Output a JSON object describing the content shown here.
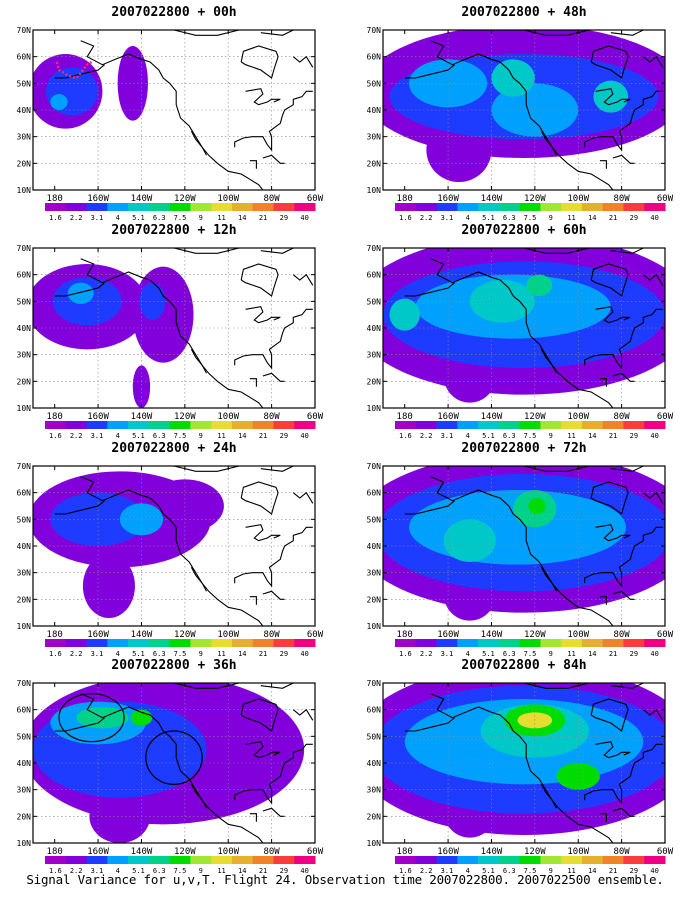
{
  "caption": "Signal Variance for u,v,T. Flight 24. Observation time 2007022800. 2007022500 ensemble.",
  "chart_data": [
    {
      "type": "heatmap",
      "title": "2007022800 + 00h",
      "lat_ticks": [
        "10N",
        "20N",
        "30N",
        "40N",
        "50N",
        "60N",
        "70N"
      ],
      "lon_ticks": [
        "180",
        "160W",
        "140W",
        "120W",
        "100W",
        "80W",
        "60W"
      ],
      "lon_range": [
        -190,
        -60
      ],
      "lat_range": [
        10,
        70
      ],
      "colorbar_labels": [
        "1.6",
        "2.2",
        "3.1",
        "4",
        "5.1",
        "6.3",
        "7.5",
        "9",
        "11",
        "14",
        "21",
        "29",
        "40"
      ],
      "colorbar_colors": [
        "#a000c8",
        "#8200dc",
        "#1e3cff",
        "#00a0ff",
        "#00c8c8",
        "#00d28c",
        "#00dc00",
        "#a0e632",
        "#e6dc32",
        "#e6af2d",
        "#f08228",
        "#fa3c3c",
        "#f00082"
      ],
      "blobs": [
        {
          "lon": -175,
          "lat": 47,
          "rx": 17,
          "ry": 14,
          "level": 1
        },
        {
          "lon": -172,
          "lat": 47,
          "rx": 12,
          "ry": 9,
          "level": 2
        },
        {
          "lon": -178,
          "lat": 43,
          "rx": 4,
          "ry": 3,
          "level": 3
        },
        {
          "lon": -144,
          "lat": 50,
          "rx": 7,
          "ry": 14,
          "level": 1
        }
      ],
      "observation_track": true
    },
    {
      "type": "heatmap",
      "title": "2007022800 + 48h",
      "lat_ticks": [
        "10N",
        "20N",
        "30N",
        "40N",
        "50N",
        "60N",
        "70N"
      ],
      "lon_ticks": [
        "180",
        "160W",
        "140W",
        "120W",
        "100W",
        "80W",
        "60W"
      ],
      "lon_range": [
        -190,
        -60
      ],
      "lat_range": [
        10,
        70
      ],
      "colorbar_labels": [
        "1.6",
        "2.2",
        "3.1",
        "4",
        "5.1",
        "6.3",
        "7.5",
        "9",
        "11",
        "14",
        "21",
        "29",
        "40"
      ],
      "colorbar_colors": [
        "#a000c8",
        "#8200dc",
        "#1e3cff",
        "#00a0ff",
        "#00c8c8",
        "#00d28c",
        "#00dc00",
        "#a0e632",
        "#e6dc32",
        "#e6af2d",
        "#f08228",
        "#fa3c3c",
        "#f00082"
      ],
      "blobs": [
        {
          "lon": -125,
          "lat": 47,
          "rx": 75,
          "ry": 25,
          "level": 1
        },
        {
          "lon": -155,
          "lat": 25,
          "rx": 15,
          "ry": 12,
          "level": 1
        },
        {
          "lon": -125,
          "lat": 45,
          "rx": 62,
          "ry": 16,
          "level": 2
        },
        {
          "lon": -160,
          "lat": 50,
          "rx": 18,
          "ry": 9,
          "level": 3
        },
        {
          "lon": -120,
          "lat": 40,
          "rx": 20,
          "ry": 10,
          "level": 3
        },
        {
          "lon": -85,
          "lat": 45,
          "rx": 8,
          "ry": 6,
          "level": 4
        },
        {
          "lon": -130,
          "lat": 52,
          "rx": 10,
          "ry": 7,
          "level": 4
        }
      ]
    },
    {
      "type": "heatmap",
      "title": "2007022800 + 12h",
      "lat_ticks": [
        "10N",
        "20N",
        "30N",
        "40N",
        "50N",
        "60N",
        "70N"
      ],
      "lon_ticks": [
        "180",
        "160W",
        "140W",
        "120W",
        "100W",
        "80W",
        "60W"
      ],
      "lon_range": [
        -190,
        -60
      ],
      "lat_range": [
        10,
        70
      ],
      "colorbar_labels": [
        "1.6",
        "2.2",
        "3.1",
        "4",
        "5.1",
        "6.3",
        "7.5",
        "9",
        "11",
        "14",
        "21",
        "29",
        "40"
      ],
      "colorbar_colors": [
        "#a000c8",
        "#8200dc",
        "#1e3cff",
        "#00a0ff",
        "#00c8c8",
        "#00d28c",
        "#00dc00",
        "#a0e632",
        "#e6dc32",
        "#e6af2d",
        "#f08228",
        "#fa3c3c",
        "#f00082"
      ],
      "blobs": [
        {
          "lon": -165,
          "lat": 48,
          "rx": 28,
          "ry": 16,
          "level": 1
        },
        {
          "lon": -130,
          "lat": 45,
          "rx": 14,
          "ry": 18,
          "level": 1
        },
        {
          "lon": -140,
          "lat": 18,
          "rx": 4,
          "ry": 8,
          "level": 1
        },
        {
          "lon": -165,
          "lat": 50,
          "rx": 16,
          "ry": 9,
          "level": 2
        },
        {
          "lon": -135,
          "lat": 50,
          "rx": 6,
          "ry": 7,
          "level": 2
        },
        {
          "lon": -168,
          "lat": 53,
          "rx": 6,
          "ry": 4,
          "level": 3
        }
      ]
    },
    {
      "type": "heatmap",
      "title": "2007022800 + 60h",
      "lat_ticks": [
        "10N",
        "20N",
        "30N",
        "40N",
        "50N",
        "60N",
        "70N"
      ],
      "lon_ticks": [
        "180",
        "160W",
        "140W",
        "120W",
        "100W",
        "80W",
        "60W"
      ],
      "lon_range": [
        -190,
        -60
      ],
      "lat_range": [
        10,
        70
      ],
      "colorbar_labels": [
        "1.6",
        "2.2",
        "3.1",
        "4",
        "5.1",
        "6.3",
        "7.5",
        "9",
        "11",
        "14",
        "21",
        "29",
        "40"
      ],
      "colorbar_colors": [
        "#a000c8",
        "#8200dc",
        "#1e3cff",
        "#00a0ff",
        "#00c8c8",
        "#00d28c",
        "#00dc00",
        "#a0e632",
        "#e6dc32",
        "#e6af2d",
        "#f08228",
        "#fa3c3c",
        "#f00082"
      ],
      "blobs": [
        {
          "lon": -125,
          "lat": 45,
          "rx": 80,
          "ry": 30,
          "level": 1
        },
        {
          "lon": -150,
          "lat": 22,
          "rx": 12,
          "ry": 10,
          "level": 1
        },
        {
          "lon": -125,
          "lat": 45,
          "rx": 65,
          "ry": 20,
          "level": 2
        },
        {
          "lon": -130,
          "lat": 48,
          "rx": 45,
          "ry": 12,
          "level": 3
        },
        {
          "lon": -135,
          "lat": 50,
          "rx": 15,
          "ry": 8,
          "level": 4
        },
        {
          "lon": -118,
          "lat": 56,
          "rx": 6,
          "ry": 4,
          "level": 5
        },
        {
          "lon": -180,
          "lat": 45,
          "rx": 7,
          "ry": 6,
          "level": 4
        }
      ]
    },
    {
      "type": "heatmap",
      "title": "2007022800 + 24h",
      "lat_ticks": [
        "10N",
        "20N",
        "30N",
        "40N",
        "50N",
        "60N",
        "70N"
      ],
      "lon_ticks": [
        "180",
        "160W",
        "140W",
        "120W",
        "100W",
        "80W",
        "60W"
      ],
      "lon_range": [
        -190,
        -60
      ],
      "lat_range": [
        10,
        70
      ],
      "colorbar_labels": [
        "1.6",
        "2.2",
        "3.1",
        "4",
        "5.1",
        "6.3",
        "7.5",
        "9",
        "11",
        "14",
        "21",
        "29",
        "40"
      ],
      "colorbar_colors": [
        "#a000c8",
        "#8200dc",
        "#1e3cff",
        "#00a0ff",
        "#00c8c8",
        "#00d28c",
        "#00dc00",
        "#a0e632",
        "#e6dc32",
        "#e6af2d",
        "#f08228",
        "#fa3c3c",
        "#f00082"
      ],
      "blobs": [
        {
          "lon": -150,
          "lat": 50,
          "rx": 42,
          "ry": 18,
          "level": 1
        },
        {
          "lon": -155,
          "lat": 25,
          "rx": 12,
          "ry": 12,
          "level": 1
        },
        {
          "lon": -120,
          "lat": 55,
          "rx": 18,
          "ry": 10,
          "level": 1
        },
        {
          "lon": -160,
          "lat": 50,
          "rx": 22,
          "ry": 10,
          "level": 2
        },
        {
          "lon": -140,
          "lat": 50,
          "rx": 10,
          "ry": 6,
          "level": 3
        }
      ]
    },
    {
      "type": "heatmap",
      "title": "2007022800 + 72h",
      "lat_ticks": [
        "10N",
        "20N",
        "30N",
        "40N",
        "50N",
        "60N",
        "70N"
      ],
      "lon_ticks": [
        "180",
        "160W",
        "140W",
        "120W",
        "100W",
        "80W",
        "60W"
      ],
      "lon_range": [
        -190,
        -60
      ],
      "lat_range": [
        10,
        70
      ],
      "colorbar_labels": [
        "1.6",
        "2.2",
        "3.1",
        "4",
        "5.1",
        "6.3",
        "7.5",
        "9",
        "11",
        "14",
        "21",
        "29",
        "40"
      ],
      "colorbar_colors": [
        "#a000c8",
        "#8200dc",
        "#1e3cff",
        "#00a0ff",
        "#00c8c8",
        "#00d28c",
        "#00dc00",
        "#a0e632",
        "#e6dc32",
        "#e6af2d",
        "#f08228",
        "#fa3c3c",
        "#f00082"
      ],
      "blobs": [
        {
          "lon": -125,
          "lat": 45,
          "rx": 80,
          "ry": 30,
          "level": 1
        },
        {
          "lon": -150,
          "lat": 22,
          "rx": 12,
          "ry": 10,
          "level": 1
        },
        {
          "lon": -125,
          "lat": 45,
          "rx": 68,
          "ry": 22,
          "level": 2
        },
        {
          "lon": -128,
          "lat": 47,
          "rx": 50,
          "ry": 14,
          "level": 3
        },
        {
          "lon": -150,
          "lat": 42,
          "rx": 12,
          "ry": 8,
          "level": 4
        },
        {
          "lon": -120,
          "lat": 54,
          "rx": 10,
          "ry": 7,
          "level": 5
        },
        {
          "lon": -119,
          "lat": 55,
          "rx": 4,
          "ry": 3,
          "level": 6
        }
      ]
    },
    {
      "type": "heatmap",
      "title": "2007022800 + 36h",
      "lat_ticks": [
        "10N",
        "20N",
        "30N",
        "40N",
        "50N",
        "60N",
        "70N"
      ],
      "lon_ticks": [
        "180",
        "160W",
        "140W",
        "120W",
        "100W",
        "80W",
        "60W"
      ],
      "lon_range": [
        -190,
        -60
      ],
      "lat_range": [
        10,
        70
      ],
      "colorbar_labels": [
        "1.6",
        "2.2",
        "3.1",
        "4",
        "5.1",
        "6.3",
        "7.5",
        "9",
        "11",
        "14",
        "21",
        "29",
        "40"
      ],
      "colorbar_colors": [
        "#a000c8",
        "#8200dc",
        "#1e3cff",
        "#00a0ff",
        "#00c8c8",
        "#00d28c",
        "#00dc00",
        "#a0e632",
        "#e6dc32",
        "#e6af2d",
        "#f08228",
        "#fa3c3c",
        "#f00082"
      ],
      "blobs": [
        {
          "lon": -130,
          "lat": 45,
          "rx": 65,
          "ry": 28,
          "level": 1
        },
        {
          "lon": -150,
          "lat": 20,
          "rx": 14,
          "ry": 10,
          "level": 1
        },
        {
          "lon": -150,
          "lat": 45,
          "rx": 40,
          "ry": 18,
          "level": 2
        },
        {
          "lon": -160,
          "lat": 55,
          "rx": 22,
          "ry": 8,
          "level": 3
        },
        {
          "lon": -158,
          "lat": 57,
          "rx": 12,
          "ry": 4,
          "level": 5
        },
        {
          "lon": -140,
          "lat": 57,
          "rx": 5,
          "ry": 3,
          "level": 6
        }
      ],
      "circles": [
        {
          "lon": -163,
          "lat": 57,
          "rx": 15,
          "ry": 9
        },
        {
          "lon": -125,
          "lat": 42,
          "rx": 13,
          "ry": 10
        }
      ]
    },
    {
      "type": "heatmap",
      "title": "2007022800 + 84h",
      "lat_ticks": [
        "10N",
        "20N",
        "30N",
        "40N",
        "50N",
        "60N",
        "70N"
      ],
      "lon_ticks": [
        "180",
        "160W",
        "140W",
        "120W",
        "100W",
        "80W",
        "60W"
      ],
      "lon_range": [
        -190,
        -60
      ],
      "lat_range": [
        10,
        70
      ],
      "colorbar_labels": [
        "1.6",
        "2.2",
        "3.1",
        "4",
        "5.1",
        "6.3",
        "7.5",
        "9",
        "11",
        "14",
        "21",
        "29",
        "40"
      ],
      "colorbar_colors": [
        "#a000c8",
        "#8200dc",
        "#1e3cff",
        "#00a0ff",
        "#00c8c8",
        "#00d28c",
        "#00dc00",
        "#a0e632",
        "#e6dc32",
        "#e6af2d",
        "#f08228",
        "#fa3c3c",
        "#f00082"
      ],
      "blobs": [
        {
          "lon": -125,
          "lat": 45,
          "rx": 80,
          "ry": 32,
          "level": 1
        },
        {
          "lon": -150,
          "lat": 22,
          "rx": 12,
          "ry": 10,
          "level": 1
        },
        {
          "lon": -125,
          "lat": 45,
          "rx": 70,
          "ry": 24,
          "level": 2
        },
        {
          "lon": -125,
          "lat": 48,
          "rx": 55,
          "ry": 16,
          "level": 3
        },
        {
          "lon": -120,
          "lat": 52,
          "rx": 25,
          "ry": 10,
          "level": 4
        },
        {
          "lon": -120,
          "lat": 56,
          "rx": 14,
          "ry": 6,
          "level": 6
        },
        {
          "lon": -120,
          "lat": 56,
          "rx": 8,
          "ry": 3,
          "level": 8
        },
        {
          "lon": -100,
          "lat": 35,
          "rx": 10,
          "ry": 5,
          "level": 6
        }
      ]
    }
  ]
}
